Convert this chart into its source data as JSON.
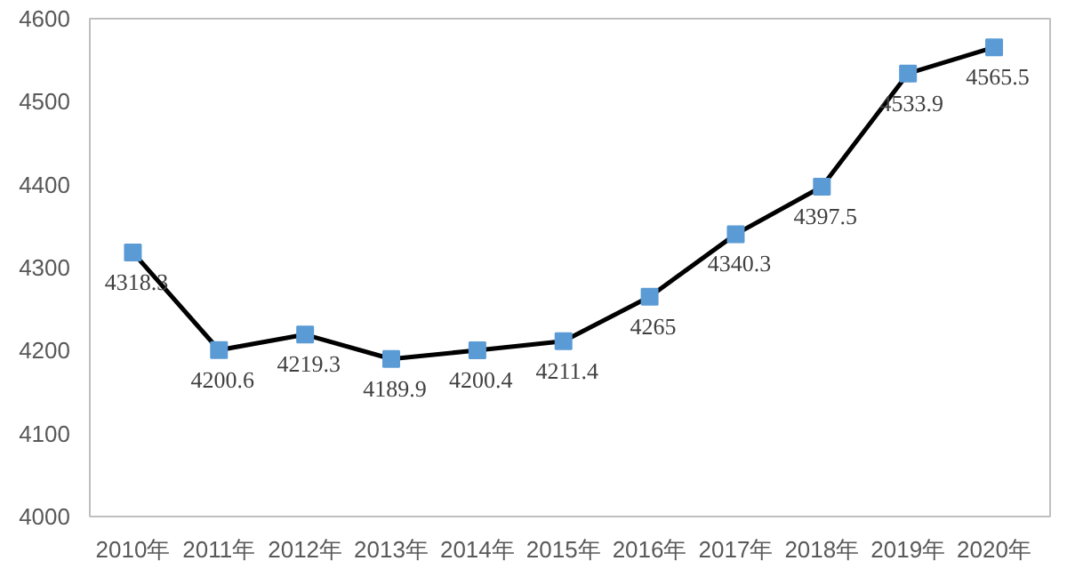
{
  "chart_data": {
    "type": "line",
    "categories": [
      "2010年",
      "2011年",
      "2012年",
      "2013年",
      "2014年",
      "2015年",
      "2016年",
      "2017年",
      "2018年",
      "2019年",
      "2020年"
    ],
    "series": [
      {
        "color": "#000000",
        "colors": [
          "#5b9bd5",
          "#5b9bd5",
          "#5b9bd5",
          "#5b9bd5",
          "#5b9bd5",
          "#5b9bd5",
          "#5b9bd5",
          "#5b9bd5",
          "#5b9bd5",
          "#5b9bd5",
          "#5b9bd5"
        ],
        "values": [
          4318.3,
          4200.6,
          4219.3,
          4189.9,
          4200.4,
          4211.4,
          4265,
          4340.3,
          4397.5,
          4533.9,
          4565.5
        ]
      }
    ],
    "marker": "square",
    "line_style": "solid",
    "data_labels": true,
    "grid": false,
    "ylim": [
      4000,
      4600
    ],
    "yticks": [
      4000,
      4100,
      4200,
      4300,
      4400,
      4500,
      4600
    ]
  }
}
